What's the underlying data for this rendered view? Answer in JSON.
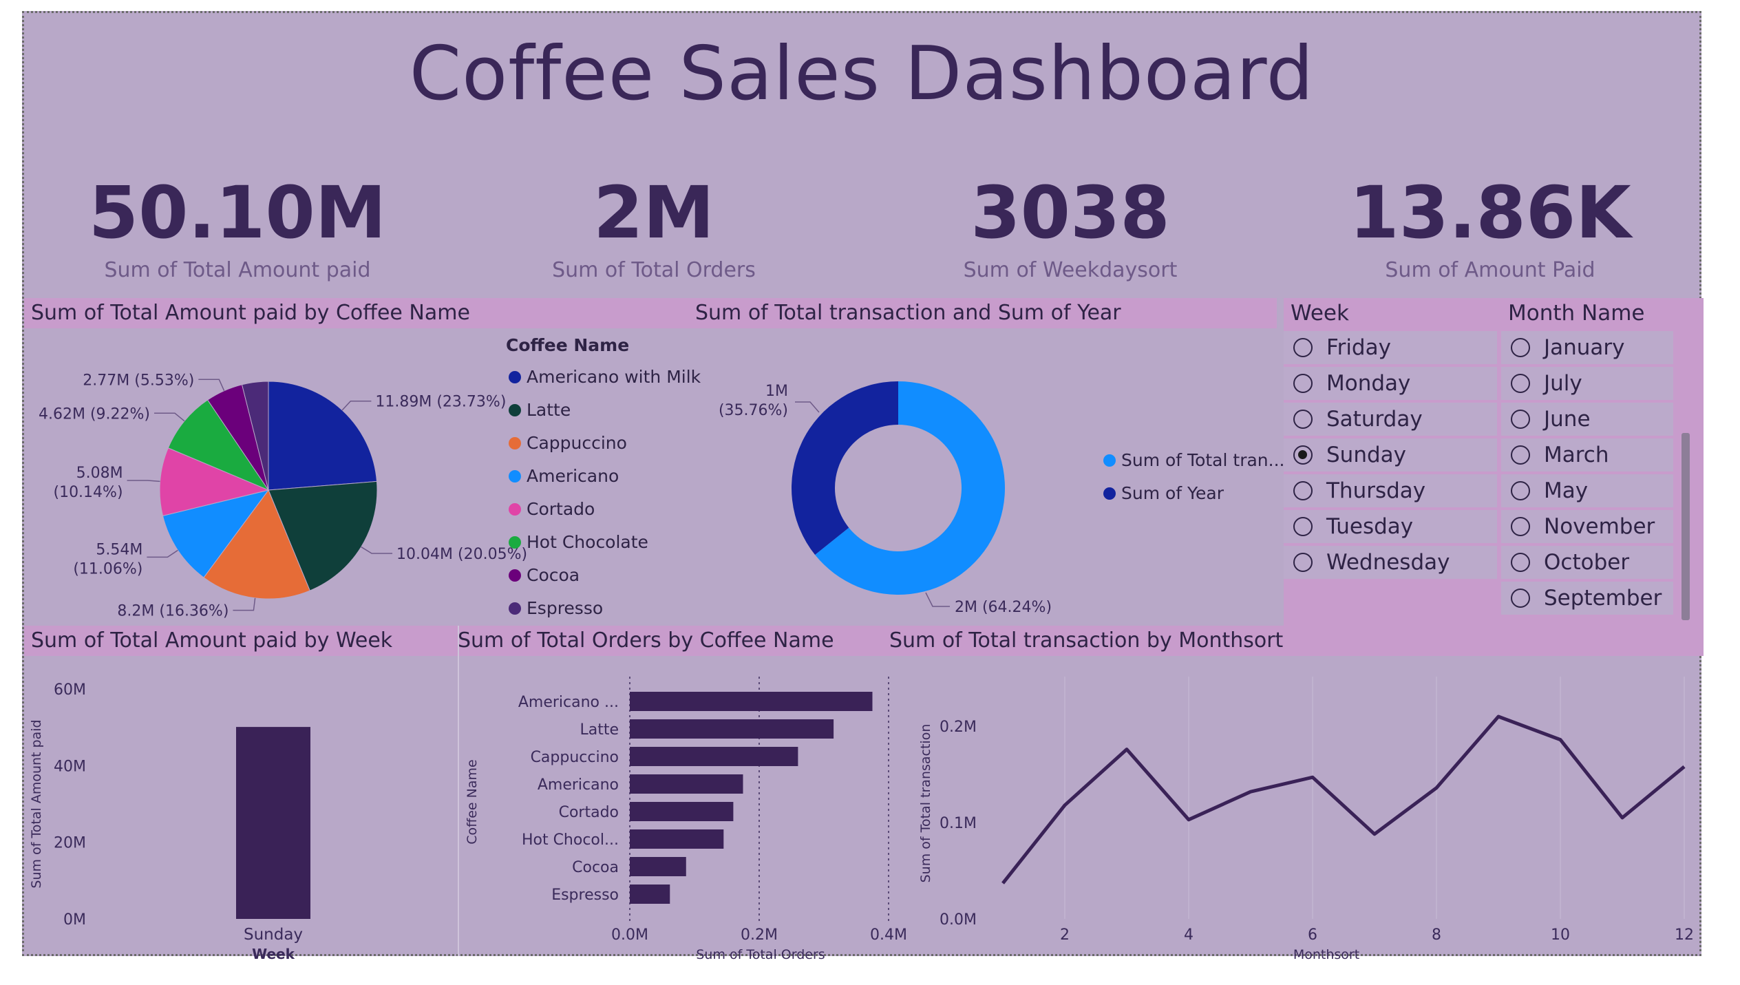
{
  "title": "Coffee Sales Dashboard",
  "kpis": [
    {
      "value": "50.10M",
      "label": "Sum of Total Amount paid"
    },
    {
      "value": "2M",
      "label": "Sum of Total Orders"
    },
    {
      "value": "3038",
      "label": "Sum of Weekdaysort"
    },
    {
      "value": "13.86K",
      "label": "Sum of Amount Paid"
    }
  ],
  "pie_title": "Sum of Total Amount paid by Coffee Name",
  "donut_title": "Sum of Total transaction and Sum of Year",
  "week_slicer": {
    "title": "Week",
    "items": [
      "Friday",
      "Monday",
      "Saturday",
      "Sunday",
      "Thursday",
      "Tuesday",
      "Wednesday"
    ],
    "selected": "Sunday"
  },
  "month_slicer": {
    "title": "Month Name",
    "items": [
      "January",
      "July",
      "June",
      "March",
      "May",
      "November",
      "October",
      "September"
    ]
  },
  "bar_week_title": "Sum of Total Amount paid by Week",
  "bar_orders_title": "Sum of Total Orders by Coffee Name",
  "line_title": "Sum of Total transaction by Monthsort",
  "colors": {
    "americano_with_milk": "#12239e",
    "latte": "#0f3f3a",
    "cappuccino": "#e66c37",
    "americano": "#118dff",
    "cortado": "#e044a7",
    "hot_chocolate": "#1aab40",
    "cocoa": "#6b007b",
    "espresso": "#4b2a78",
    "bar": "#3a2257"
  },
  "chart_data": [
    {
      "type": "pie",
      "title": "Sum of Total Amount paid by Coffee Name",
      "legend_title": "Coffee Name",
      "categories": [
        "Americano with Milk",
        "Latte",
        "Cappuccino",
        "Americano",
        "Cortado",
        "Hot Chocolate",
        "Cocoa",
        "Espresso"
      ],
      "values": [
        11.89,
        10.04,
        8.2,
        5.54,
        5.08,
        4.62,
        2.77,
        1.96
      ],
      "percents": [
        23.73,
        20.05,
        16.36,
        11.06,
        10.14,
        9.22,
        5.53,
        3.91
      ],
      "data_labels": [
        "11.89M (23.73%)",
        "10.04M (20.05%)",
        "8.2M (16.36%)",
        "5.54M (11.06%)",
        "5.08M (10.14%)",
        "4.62M (9.22%)",
        "2.77M (5.53%)",
        ""
      ],
      "legend_placement": "right"
    },
    {
      "type": "pie",
      "title": "Sum of Total transaction and Sum of Year",
      "categories": [
        "Sum of Total tran...",
        "Sum of Year"
      ],
      "values": [
        2,
        1
      ],
      "percents": [
        64.24,
        35.76
      ],
      "data_labels": [
        "2M (64.24%)",
        "1M (35.76%)"
      ],
      "legend_placement": "right"
    },
    {
      "type": "bar",
      "title": "Sum of Total Amount paid by Week",
      "categories": [
        "Sunday"
      ],
      "values": [
        50.1
      ],
      "xlabel": "Week",
      "ylabel": "Sum of Total Amount paid",
      "yticks": [
        "0M",
        "20M",
        "40M",
        "60M"
      ],
      "ylim": [
        0,
        60
      ]
    },
    {
      "type": "bar",
      "orientation": "horizontal",
      "title": "Sum of Total Orders by Coffee Name",
      "categories": [
        "Americano ...",
        "Latte",
        "Cappuccino",
        "Americano",
        "Cortado",
        "Hot Chocol...",
        "Cocoa",
        "Espresso"
      ],
      "values": [
        0.375,
        0.315,
        0.26,
        0.175,
        0.16,
        0.145,
        0.087,
        0.062
      ],
      "xlabel": "Sum of Total Orders",
      "ylabel": "Coffee Name",
      "xticks": [
        "0.0M",
        "0.2M",
        "0.4M"
      ],
      "xlim": [
        0,
        0.4
      ]
    },
    {
      "type": "line",
      "title": "Sum of Total transaction by Monthsort",
      "x": [
        1,
        2,
        3,
        4,
        5,
        6,
        7,
        8,
        9,
        10,
        11,
        12
      ],
      "values": [
        0.037,
        0.118,
        0.176,
        0.103,
        0.132,
        0.147,
        0.088,
        0.136,
        0.21,
        0.186,
        0.105,
        0.158
      ],
      "xlabel": "Monthsort",
      "ylabel": "Sum of Total transaction",
      "xticks": [
        "2",
        "4",
        "6",
        "8",
        "10",
        "12"
      ],
      "yticks": [
        "0.0M",
        "0.1M",
        "0.2M"
      ],
      "ylim": [
        0,
        0.24
      ]
    }
  ]
}
